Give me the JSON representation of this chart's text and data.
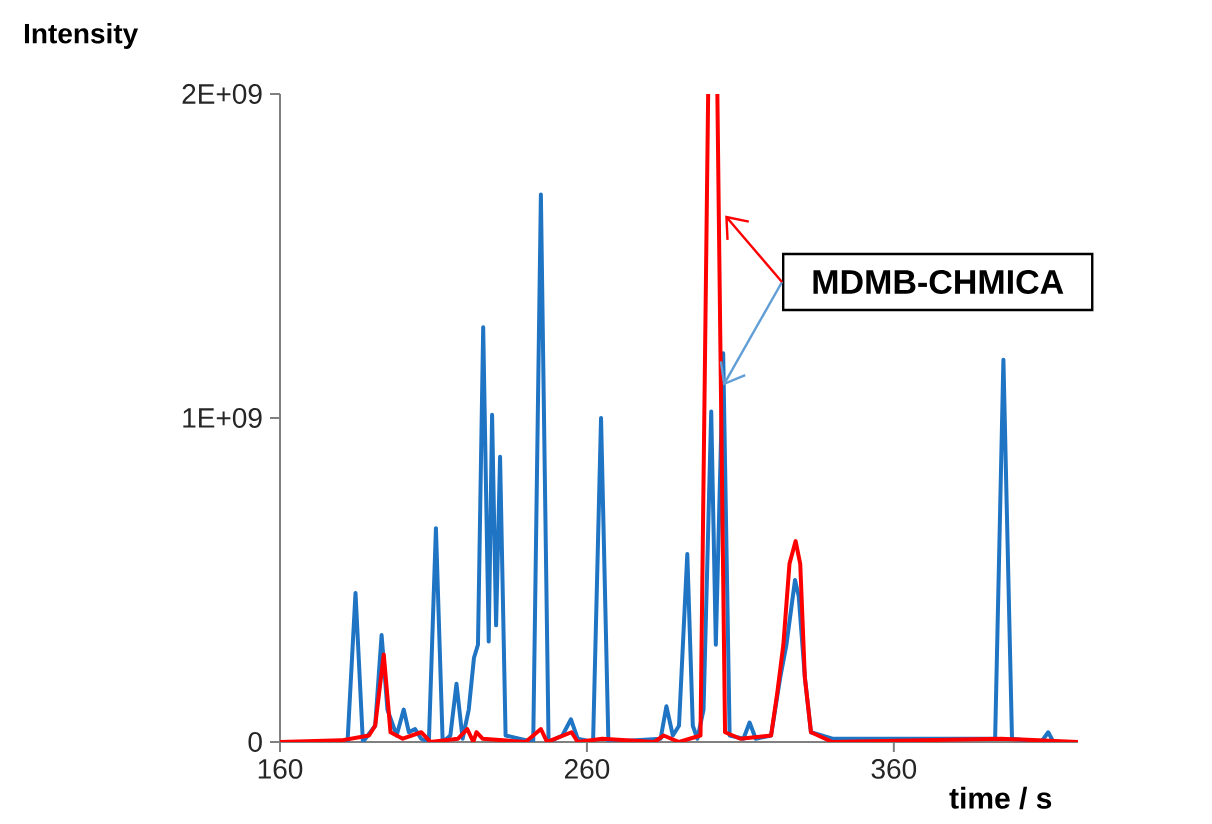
{
  "chart_data": {
    "type": "line",
    "xlabel": "time / s",
    "ylabel": "Intensity",
    "xlim": [
      160,
      420
    ],
    "ylim": [
      0,
      2000000000
    ],
    "xticks": [
      160,
      260,
      360
    ],
    "yticks": [
      {
        "value": 0,
        "label": "0"
      },
      {
        "value": 1000000000,
        "label": "1E+09"
      },
      {
        "value": 2000000000,
        "label": "2E+09"
      }
    ],
    "grid": false,
    "marker": "none",
    "line_style": "solid",
    "annotations": [
      {
        "text": "MDMB-CHMICA",
        "x": 304.4,
        "y": 1100000000
      }
    ],
    "series": [
      {
        "color": "#1f74c4",
        "x": [
          160,
          182,
          184.6,
          187,
          191,
          193.1,
          195,
          198,
          200.3,
          202,
          204,
          206,
          208.5,
          210.8,
          213,
          215.5,
          217.5,
          219.5,
          221.5,
          223.2,
          224.5,
          226.2,
          228,
          229.1,
          230.4,
          231.7,
          233.5,
          242.5,
          245,
          247.5,
          252,
          254.8,
          257,
          262,
          264.6,
          267,
          284,
          285.9,
          288,
          290,
          292.7,
          294.5,
          296,
          298,
          300.5,
          302,
          304.4,
          306.5,
          311,
          313,
          315,
          320,
          323,
          325,
          327.8,
          329,
          331,
          333,
          340,
          393,
          395.7,
          398.5,
          408,
          410.3,
          412,
          420
        ],
        "values": [
          0,
          0,
          460000000,
          0,
          50000000,
          330000000,
          100000000,
          20000000,
          100000000,
          30000000,
          40000000,
          10000000,
          0,
          660000000,
          0,
          20000000,
          180000000,
          10000000,
          100000000,
          260000000,
          300000000,
          1280000000,
          310000000,
          1010000000,
          360000000,
          880000000,
          20000000,
          0,
          1690000000,
          0,
          20000000,
          70000000,
          10000000,
          0,
          1000000000,
          0,
          10000000,
          110000000,
          20000000,
          50000000,
          580000000,
          50000000,
          10000000,
          100000000,
          1020000000,
          300000000,
          1200000000,
          20000000,
          10000000,
          60000000,
          10000000,
          20000000,
          200000000,
          300000000,
          500000000,
          450000000,
          200000000,
          30000000,
          10000000,
          10000000,
          1180000000,
          10000000,
          0,
          30000000,
          0,
          0
        ]
      },
      {
        "color": "#ff0000",
        "x": [
          160,
          180,
          189,
          191,
          193.8,
          196,
          200,
          206,
          209,
          218,
          221,
          223,
          224,
          226,
          240,
          245,
          247,
          255,
          257,
          265,
          282,
          285,
          290,
          297,
          299.5,
          301,
          302.5,
          305,
          310,
          320,
          322,
          324,
          326,
          328,
          329.5,
          331,
          333,
          340,
          395,
          420
        ],
        "values": [
          0,
          5000000,
          20000000,
          50000000,
          270000000,
          30000000,
          10000000,
          30000000,
          0,
          10000000,
          40000000,
          0,
          30000000,
          10000000,
          0,
          40000000,
          0,
          30000000,
          0,
          10000000,
          0,
          20000000,
          0,
          20000000,
          2000000000,
          null,
          2000000000,
          30000000,
          10000000,
          20000000,
          150000000,
          300000000,
          550000000,
          620000000,
          550000000,
          200000000,
          30000000,
          0,
          10000000,
          0
        ]
      }
    ]
  }
}
